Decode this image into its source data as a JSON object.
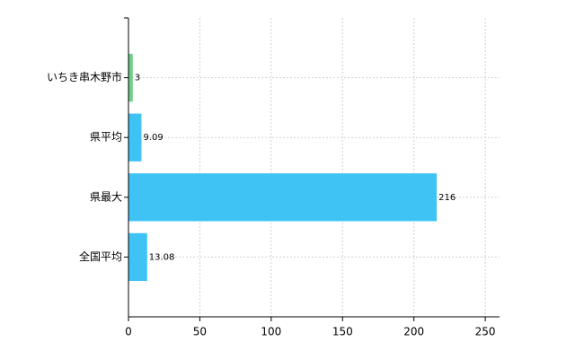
{
  "chart_data": {
    "type": "barh",
    "categories": [
      "いちき串木野市",
      "県平均",
      "県最大",
      "全国平均"
    ],
    "values": [
      3,
      9.09,
      216,
      13.08
    ],
    "colors": [
      "#6fcf87",
      "#3fc3f5",
      "#3fc3f5",
      "#3fc3f5"
    ],
    "xlim": [
      0,
      260
    ],
    "xticks": [
      0,
      50,
      100,
      150,
      200,
      250
    ],
    "grid": true
  }
}
